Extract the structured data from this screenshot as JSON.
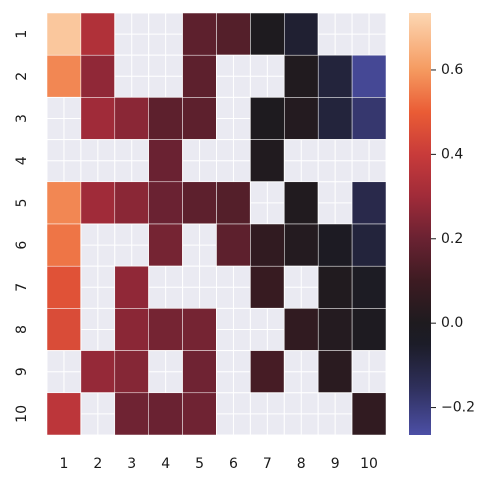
{
  "chart_data": {
    "type": "heatmap",
    "title": "",
    "xlabel": "",
    "ylabel": "",
    "x_categories": [
      "1",
      "2",
      "3",
      "4",
      "5",
      "6",
      "7",
      "8",
      "9",
      "10"
    ],
    "y_categories": [
      "1",
      "2",
      "3",
      "4",
      "5",
      "6",
      "7",
      "8",
      "9",
      "10"
    ],
    "values": [
      [
        0.7,
        0.34,
        null,
        null,
        0.17,
        0.15,
        0.0,
        -0.07,
        null,
        null
      ],
      [
        0.57,
        0.27,
        null,
        null,
        0.17,
        null,
        null,
        0.01,
        -0.09,
        -0.24
      ],
      [
        null,
        0.3,
        0.26,
        0.17,
        0.17,
        null,
        0.0,
        0.02,
        -0.09,
        -0.18
      ],
      [
        null,
        null,
        null,
        0.2,
        null,
        null,
        0.01,
        null,
        null,
        null
      ],
      [
        0.57,
        0.3,
        0.26,
        0.2,
        0.17,
        0.15,
        null,
        0.01,
        null,
        -0.12
      ],
      [
        0.54,
        null,
        null,
        0.22,
        null,
        0.17,
        0.06,
        0.02,
        -0.02,
        -0.09
      ],
      [
        0.47,
        null,
        0.27,
        null,
        null,
        null,
        0.08,
        null,
        0.01,
        -0.03
      ],
      [
        0.45,
        null,
        0.26,
        0.22,
        0.22,
        null,
        null,
        0.06,
        0.02,
        -0.01
      ],
      [
        null,
        0.28,
        0.25,
        null,
        0.21,
        null,
        0.12,
        null,
        0.04,
        null
      ],
      [
        0.37,
        null,
        0.21,
        0.2,
        0.21,
        null,
        null,
        null,
        null,
        0.06
      ]
    ],
    "mask_color": "#eaeaf2",
    "colorbar": {
      "vmin": -0.265,
      "vmax": 0.735,
      "ticks": [
        -0.2,
        0.0,
        0.2,
        0.4,
        0.6
      ],
      "tick_labels": [
        "−0.2",
        "0.0",
        "0.2",
        "0.4",
        "0.6"
      ],
      "colormap": "icefire",
      "stops": [
        [
          -0.265,
          "#4c4fa6"
        ],
        [
          -0.15,
          "#2e2f5a"
        ],
        [
          -0.05,
          "#1c1c28"
        ],
        [
          0.0,
          "#1e1b1f"
        ],
        [
          0.1,
          "#3d1b22"
        ],
        [
          0.2,
          "#6a2232"
        ],
        [
          0.3,
          "#a02b39"
        ],
        [
          0.4,
          "#c83b3a"
        ],
        [
          0.5,
          "#ea5c35"
        ],
        [
          0.6,
          "#f59a60"
        ],
        [
          0.735,
          "#fcd7b3"
        ]
      ]
    }
  }
}
